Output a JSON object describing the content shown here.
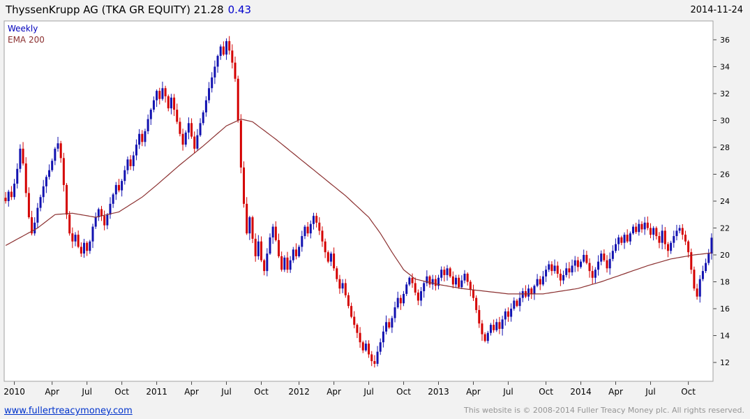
{
  "header": {
    "title_main": "ThyssenKrupp AG (TKA GR EQUITY) 21.28",
    "instrument": "ThyssenKrupp AG (TKA GR EQUITY)",
    "last_price": "21.28",
    "change": "0.43",
    "date": "2014-11-24"
  },
  "legend": {
    "timeframe": "Weekly",
    "overlay": "EMA 200"
  },
  "footer": {
    "link": "www.fullertreacymoney.com",
    "copyright": "This website is © 2008-2014 Fuller Treacy Money plc. All rights reserved."
  },
  "colors": {
    "up": "#1212b0",
    "down": "#d40000",
    "ema": "#8b3030",
    "accent_blue": "#0000cc",
    "frame": "#a0a0a0",
    "tick": "#444444",
    "axis_text": "#000000",
    "page_bg": "#f2f2f2",
    "plot_bg": "#ffffff"
  },
  "chart_data": {
    "type": "candlestick",
    "timeframe": "weekly",
    "title": "ThyssenKrupp AG (TKA GR EQUITY)",
    "grid": false,
    "legend_position": "top-left",
    "y_axis_position": "right",
    "ylim": [
      10.6,
      37.4
    ],
    "y_ticks": [
      12,
      14,
      16,
      18,
      20,
      22,
      24,
      26,
      28,
      30,
      32,
      34,
      36
    ],
    "x_ticks": [
      {
        "label": "2010",
        "index": 3
      },
      {
        "label": "Apr",
        "index": 16
      },
      {
        "label": "Jul",
        "index": 28
      },
      {
        "label": "Oct",
        "index": 40
      },
      {
        "label": "2011",
        "index": 52
      },
      {
        "label": "Apr",
        "index": 64
      },
      {
        "label": "Jul",
        "index": 76
      },
      {
        "label": "Oct",
        "index": 88
      },
      {
        "label": "2012",
        "index": 101
      },
      {
        "label": "Apr",
        "index": 113
      },
      {
        "label": "Jul",
        "index": 125
      },
      {
        "label": "Oct",
        "index": 137
      },
      {
        "label": "2013",
        "index": 149
      },
      {
        "label": "Apr",
        "index": 161
      },
      {
        "label": "Jul",
        "index": 173
      },
      {
        "label": "Oct",
        "index": 186
      },
      {
        "label": "2014",
        "index": 198
      },
      {
        "label": "Apr",
        "index": 210
      },
      {
        "label": "Jul",
        "index": 222
      },
      {
        "label": "Oct",
        "index": 235
      }
    ],
    "closes": [
      24.0,
      24.7,
      24.3,
      25.3,
      26.4,
      27.9,
      26.8,
      24.6,
      22.8,
      21.6,
      22.4,
      23.5,
      24.3,
      25.1,
      25.8,
      26.3,
      27.0,
      27.9,
      28.3,
      27.2,
      25.2,
      23.0,
      21.6,
      21.0,
      21.5,
      20.6,
      20.1,
      20.9,
      20.3,
      21.0,
      22.1,
      22.8,
      23.4,
      22.9,
      22.2,
      23.0,
      23.8,
      24.5,
      25.2,
      24.8,
      25.5,
      26.3,
      27.1,
      26.6,
      27.4,
      28.2,
      29.0,
      28.4,
      29.2,
      30.1,
      30.8,
      31.5,
      32.2,
      31.6,
      32.4,
      31.8,
      30.9,
      31.7,
      30.8,
      29.9,
      29.0,
      28.2,
      29.1,
      29.8,
      28.8,
      27.9,
      28.9,
      29.8,
      30.6,
      31.5,
      32.4,
      33.2,
      34.0,
      34.8,
      35.5,
      34.9,
      35.9,
      35.2,
      34.3,
      33.1,
      30.0,
      26.5,
      23.8,
      21.6,
      22.8,
      21.2,
      19.9,
      21.0,
      19.6,
      18.8,
      20.1,
      21.3,
      22.1,
      21.1,
      19.9,
      18.9,
      19.8,
      18.9,
      19.6,
      20.4,
      19.9,
      20.6,
      21.4,
      22.1,
      21.6,
      22.3,
      22.9,
      22.4,
      21.8,
      21.0,
      20.2,
      19.5,
      20.1,
      19.0,
      18.2,
      17.5,
      17.9,
      17.0,
      16.2,
      15.4,
      14.8,
      14.2,
      13.5,
      12.9,
      13.4,
      12.6,
      12.1,
      11.9,
      12.8,
      13.5,
      14.3,
      15.0,
      14.6,
      15.3,
      16.1,
      16.8,
      16.4,
      17.1,
      17.8,
      18.3,
      17.9,
      17.2,
      16.6,
      17.3,
      17.9,
      18.4,
      17.8,
      18.2,
      17.7,
      18.3,
      18.9,
      18.5,
      19.0,
      18.4,
      17.8,
      18.3,
      17.6,
      18.1,
      18.6,
      18.0,
      17.4,
      16.8,
      15.9,
      14.9,
      14.1,
      13.6,
      14.2,
      14.8,
      14.4,
      15.0,
      14.5,
      15.2,
      15.8,
      15.4,
      16.0,
      16.6,
      16.2,
      16.8,
      17.3,
      16.9,
      17.5,
      17.1,
      17.7,
      18.2,
      17.8,
      18.4,
      18.9,
      19.3,
      18.8,
      19.2,
      18.6,
      18.1,
      18.5,
      19.0,
      18.7,
      19.2,
      19.6,
      19.1,
      19.5,
      20.0,
      19.4,
      18.8,
      18.3,
      18.9,
      19.5,
      20.1,
      19.6,
      19.0,
      19.7,
      20.3,
      20.8,
      21.3,
      20.9,
      21.5,
      21.0,
      21.6,
      22.1,
      21.7,
      22.3,
      21.9,
      22.4,
      22.0,
      21.5,
      22.0,
      21.4,
      20.9,
      21.8,
      20.8,
      20.3,
      20.9,
      21.4,
      21.8,
      22.0,
      21.5,
      21.0,
      20.2,
      18.9,
      17.5,
      16.9,
      18.2,
      18.8,
      19.4,
      20.1,
      21.28
    ],
    "ema200_keyframes": [
      [
        0,
        20.7
      ],
      [
        11,
        22.0
      ],
      [
        17,
        23.0
      ],
      [
        23,
        23.1
      ],
      [
        31,
        22.8
      ],
      [
        39,
        23.2
      ],
      [
        47,
        24.3
      ],
      [
        52,
        25.2
      ],
      [
        60,
        26.7
      ],
      [
        68,
        28.1
      ],
      [
        76,
        29.6
      ],
      [
        81,
        30.1
      ],
      [
        85,
        29.9
      ],
      [
        93,
        28.6
      ],
      [
        101,
        27.2
      ],
      [
        109,
        25.8
      ],
      [
        117,
        24.4
      ],
      [
        121,
        23.6
      ],
      [
        125,
        22.8
      ],
      [
        129,
        21.6
      ],
      [
        133,
        20.2
      ],
      [
        137,
        18.9
      ],
      [
        141,
        18.2
      ],
      [
        149,
        17.8
      ],
      [
        157,
        17.5
      ],
      [
        165,
        17.3
      ],
      [
        173,
        17.1
      ],
      [
        185,
        17.1
      ],
      [
        197,
        17.5
      ],
      [
        205,
        18.0
      ],
      [
        213,
        18.6
      ],
      [
        221,
        19.2
      ],
      [
        229,
        19.7
      ],
      [
        237,
        20.0
      ],
      [
        243,
        20.15
      ]
    ]
  }
}
